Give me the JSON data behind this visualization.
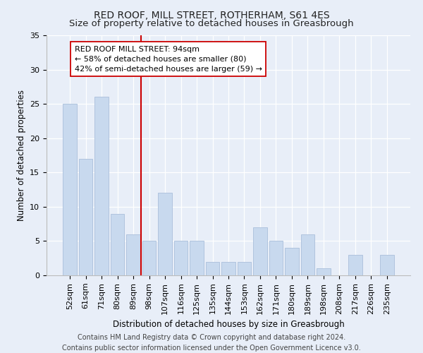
{
  "title": "RED ROOF, MILL STREET, ROTHERHAM, S61 4ES",
  "subtitle": "Size of property relative to detached houses in Greasbrough",
  "xlabel": "Distribution of detached houses by size in Greasbrough",
  "ylabel": "Number of detached properties",
  "categories": [
    "52sqm",
    "61sqm",
    "71sqm",
    "80sqm",
    "89sqm",
    "98sqm",
    "107sqm",
    "116sqm",
    "125sqm",
    "135sqm",
    "144sqm",
    "153sqm",
    "162sqm",
    "171sqm",
    "180sqm",
    "189sqm",
    "198sqm",
    "208sqm",
    "217sqm",
    "226sqm",
    "235sqm"
  ],
  "values": [
    25,
    17,
    26,
    9,
    6,
    5,
    12,
    5,
    5,
    2,
    2,
    2,
    7,
    5,
    4,
    6,
    1,
    0,
    3,
    0,
    3
  ],
  "bar_color": "#c8d9ee",
  "bar_edge_color": "#b0c4de",
  "vline_color": "#cc0000",
  "annotation_text": "RED ROOF MILL STREET: 94sqm\n← 58% of detached houses are smaller (80)\n42% of semi-detached houses are larger (59) →",
  "annotation_box_color": "#ffffff",
  "annotation_box_edge": "#cc0000",
  "ylim": [
    0,
    35
  ],
  "yticks": [
    0,
    5,
    10,
    15,
    20,
    25,
    30,
    35
  ],
  "bg_color": "#e8eef8",
  "plot_bg_color": "#e8eef8",
  "footer_line1": "Contains HM Land Registry data © Crown copyright and database right 2024.",
  "footer_line2": "Contains public sector information licensed under the Open Government Licence v3.0.",
  "title_fontsize": 10,
  "subtitle_fontsize": 9.5,
  "axis_label_fontsize": 8.5,
  "tick_fontsize": 8,
  "annotation_fontsize": 8,
  "footer_fontsize": 7
}
